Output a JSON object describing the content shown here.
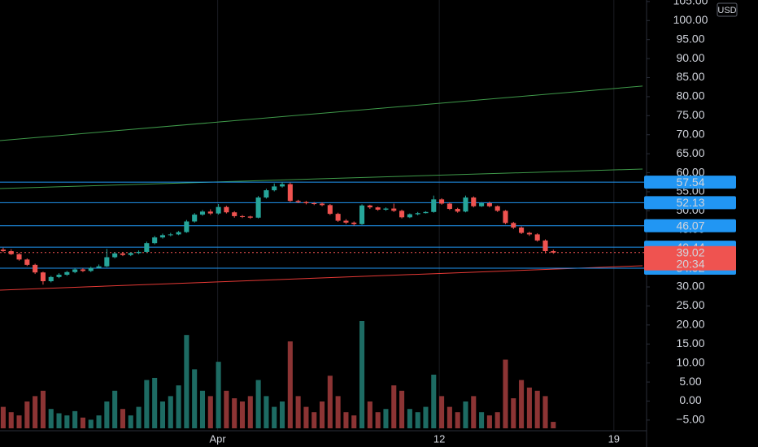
{
  "chart_data": {
    "type": "candlestick",
    "currency": "USD",
    "xlim": [
      -0.4,
      80.7
    ],
    "xticks": [
      {
        "value": 26.9,
        "label": "Apr"
      },
      {
        "value": 54.7,
        "label": "12"
      },
      {
        "value": 76.6,
        "label": "19"
      }
    ],
    "ylim": [
      -7.8,
      105.4
    ],
    "yticks": [
      {
        "value": 105,
        "label": "105.00"
      },
      {
        "value": 100,
        "label": "100.00"
      },
      {
        "value": 95,
        "label": "95.00"
      },
      {
        "value": 90,
        "label": "90.00"
      },
      {
        "value": 85,
        "label": "85.00"
      },
      {
        "value": 80,
        "label": "80.00"
      },
      {
        "value": 75,
        "label": "75.00"
      },
      {
        "value": 70,
        "label": "70.00"
      },
      {
        "value": 65,
        "label": "65.00"
      },
      {
        "value": 60,
        "label": "60.00"
      },
      {
        "value": 55,
        "label": "55.00"
      },
      {
        "value": 50,
        "label": "50.00"
      },
      {
        "value": 45,
        "label": "45.00"
      },
      {
        "value": 40,
        "label": "40.00"
      },
      {
        "value": 35,
        "label": "35.00"
      },
      {
        "value": 30,
        "label": "30.00"
      },
      {
        "value": 25,
        "label": "25.00"
      },
      {
        "value": 20,
        "label": "20.00"
      },
      {
        "value": 15,
        "label": "15.00"
      },
      {
        "value": 10,
        "label": "10.00"
      },
      {
        "value": 5,
        "label": "5.00"
      },
      {
        "value": 0,
        "label": "0.00"
      },
      {
        "value": -5,
        "label": "−5.00"
      }
    ],
    "open": [
      39.8,
      39.4,
      38.6,
      37.2,
      35.8,
      33.8,
      31.5,
      32.6,
      33.2,
      33.9,
      34.6,
      34.2,
      35.0,
      35.4,
      37.8,
      38.8,
      38.4,
      38.9,
      39.2,
      41.5,
      43.0,
      43.6,
      43.8,
      44.4,
      47.2,
      49.0,
      49.8,
      49.3,
      51.0,
      49.6,
      48.6,
      48.5,
      48.2,
      53.5,
      55.4,
      56.4,
      57.0,
      52.6,
      52.3,
      52.0,
      51.9,
      51.5,
      49.2,
      47.4,
      46.9,
      46.5,
      51.4,
      50.9,
      50.3,
      50.6,
      50.0,
      48.3,
      49.1,
      49.4,
      49.7,
      53.0,
      51.9,
      50.5,
      49.8,
      53.5,
      51.2,
      52.0,
      51.2,
      50.0,
      46.8,
      45.6,
      44.2,
      43.8,
      42.2,
      39.4
    ],
    "high": [
      40.3,
      39.9,
      38.9,
      37.5,
      36.1,
      34.0,
      32.9,
      33.6,
      34.2,
      34.9,
      34.9,
      35.3,
      35.9,
      40.0,
      39.1,
      39.2,
      39.1,
      39.6,
      41.9,
      43.4,
      44.0,
      44.2,
      44.7,
      47.6,
      49.4,
      50.2,
      50.4,
      51.8,
      51.3,
      49.9,
      48.9,
      48.7,
      53.9,
      55.8,
      57.2,
      57.6,
      57.4,
      52.9,
      52.6,
      52.3,
      52.2,
      51.8,
      49.5,
      47.8,
      47.2,
      51.7,
      51.6,
      51.1,
      50.9,
      51.9,
      50.3,
      49.3,
      49.7,
      49.9,
      54.0,
      53.3,
      52.2,
      50.8,
      54.0,
      53.8,
      52.3,
      52.4,
      51.4,
      50.2,
      47.1,
      45.9,
      44.5,
      44.1,
      42.5,
      39.8
    ],
    "low": [
      39.1,
      38.4,
      36.9,
      35.5,
      33.4,
      30.6,
      31.2,
      32.3,
      32.9,
      33.6,
      33.9,
      33.9,
      34.8,
      35.2,
      37.5,
      38.1,
      38.1,
      38.6,
      39.0,
      41.2,
      42.7,
      43.3,
      43.6,
      44.2,
      46.9,
      48.7,
      48.9,
      49.0,
      49.3,
      48.2,
      48.1,
      47.9,
      48.0,
      53.2,
      55.1,
      56.1,
      52.3,
      52.0,
      51.7,
      51.5,
      51.2,
      48.9,
      47.1,
      46.5,
      46.1,
      46.3,
      50.5,
      50.0,
      50.0,
      49.7,
      48.0,
      48.1,
      48.8,
      49.3,
      49.5,
      51.6,
      50.2,
      49.5,
      49.6,
      50.9,
      51.0,
      50.9,
      49.7,
      46.5,
      45.2,
      43.9,
      43.4,
      41.9,
      38.8,
      38.7
    ],
    "close": [
      39.4,
      38.6,
      37.2,
      35.8,
      33.8,
      31.5,
      32.6,
      33.2,
      33.9,
      34.6,
      34.2,
      35.0,
      35.4,
      37.8,
      38.8,
      38.4,
      38.9,
      39.2,
      41.5,
      43.0,
      43.6,
      43.8,
      44.4,
      47.2,
      49.0,
      49.8,
      49.3,
      51.0,
      49.6,
      48.6,
      48.5,
      48.2,
      53.5,
      55.4,
      56.4,
      57.0,
      52.6,
      52.3,
      52.0,
      51.9,
      51.5,
      49.2,
      47.4,
      46.9,
      46.5,
      51.4,
      50.9,
      50.3,
      50.6,
      50.0,
      48.3,
      49.1,
      49.4,
      49.7,
      53.0,
      51.9,
      50.5,
      49.8,
      53.5,
      51.2,
      52.0,
      51.2,
      50.0,
      46.8,
      45.6,
      44.2,
      43.8,
      42.2,
      39.4,
      39.02
    ],
    "volume": [
      20,
      15,
      12,
      25,
      30,
      35,
      18,
      14,
      12,
      16,
      10,
      8,
      12,
      25,
      35,
      18,
      12,
      20,
      45,
      47,
      25,
      30,
      40,
      87,
      55,
      35,
      30,
      62,
      35,
      28,
      25,
      30,
      45,
      30,
      20,
      25,
      81,
      30,
      20,
      15,
      25,
      49,
      30,
      15,
      12,
      100,
      25,
      15,
      18,
      40,
      35,
      18,
      15,
      20,
      50,
      30,
      20,
      15,
      25,
      30,
      15,
      12,
      15,
      64,
      28,
      45,
      38,
      35,
      30,
      6
    ],
    "volume_lim": [
      0,
      100
    ],
    "up_color": "#26a69a",
    "down_color": "#ef5350",
    "up_volume_color": "#1d6b63",
    "down_volume_color": "#8c3434",
    "levels": [
      {
        "value": 57.54,
        "color": "#2196f3"
      },
      {
        "value": 52.13,
        "color": "#2196f3"
      },
      {
        "value": 46.07,
        "color": "#2196f3"
      },
      {
        "value": 40.44,
        "color": "#2196f3"
      },
      {
        "value": 34.92,
        "color": "#2196f3"
      }
    ],
    "last_price": {
      "value": 39.02,
      "countdown": "20:34",
      "color": "#ef5350"
    },
    "trendlines": [
      {
        "color": "#3f9a4a",
        "x": [
          -0.4,
          80.2
        ],
        "y": [
          68.46,
          82.78
        ]
      },
      {
        "color": "#3f9a4a",
        "x": [
          -0.4,
          80.2
        ],
        "y": [
          55.85,
          60.98
        ]
      },
      {
        "color": "#e53935",
        "x": [
          -0.4,
          80.2
        ],
        "y": [
          29.15,
          35.56
        ]
      }
    ]
  }
}
